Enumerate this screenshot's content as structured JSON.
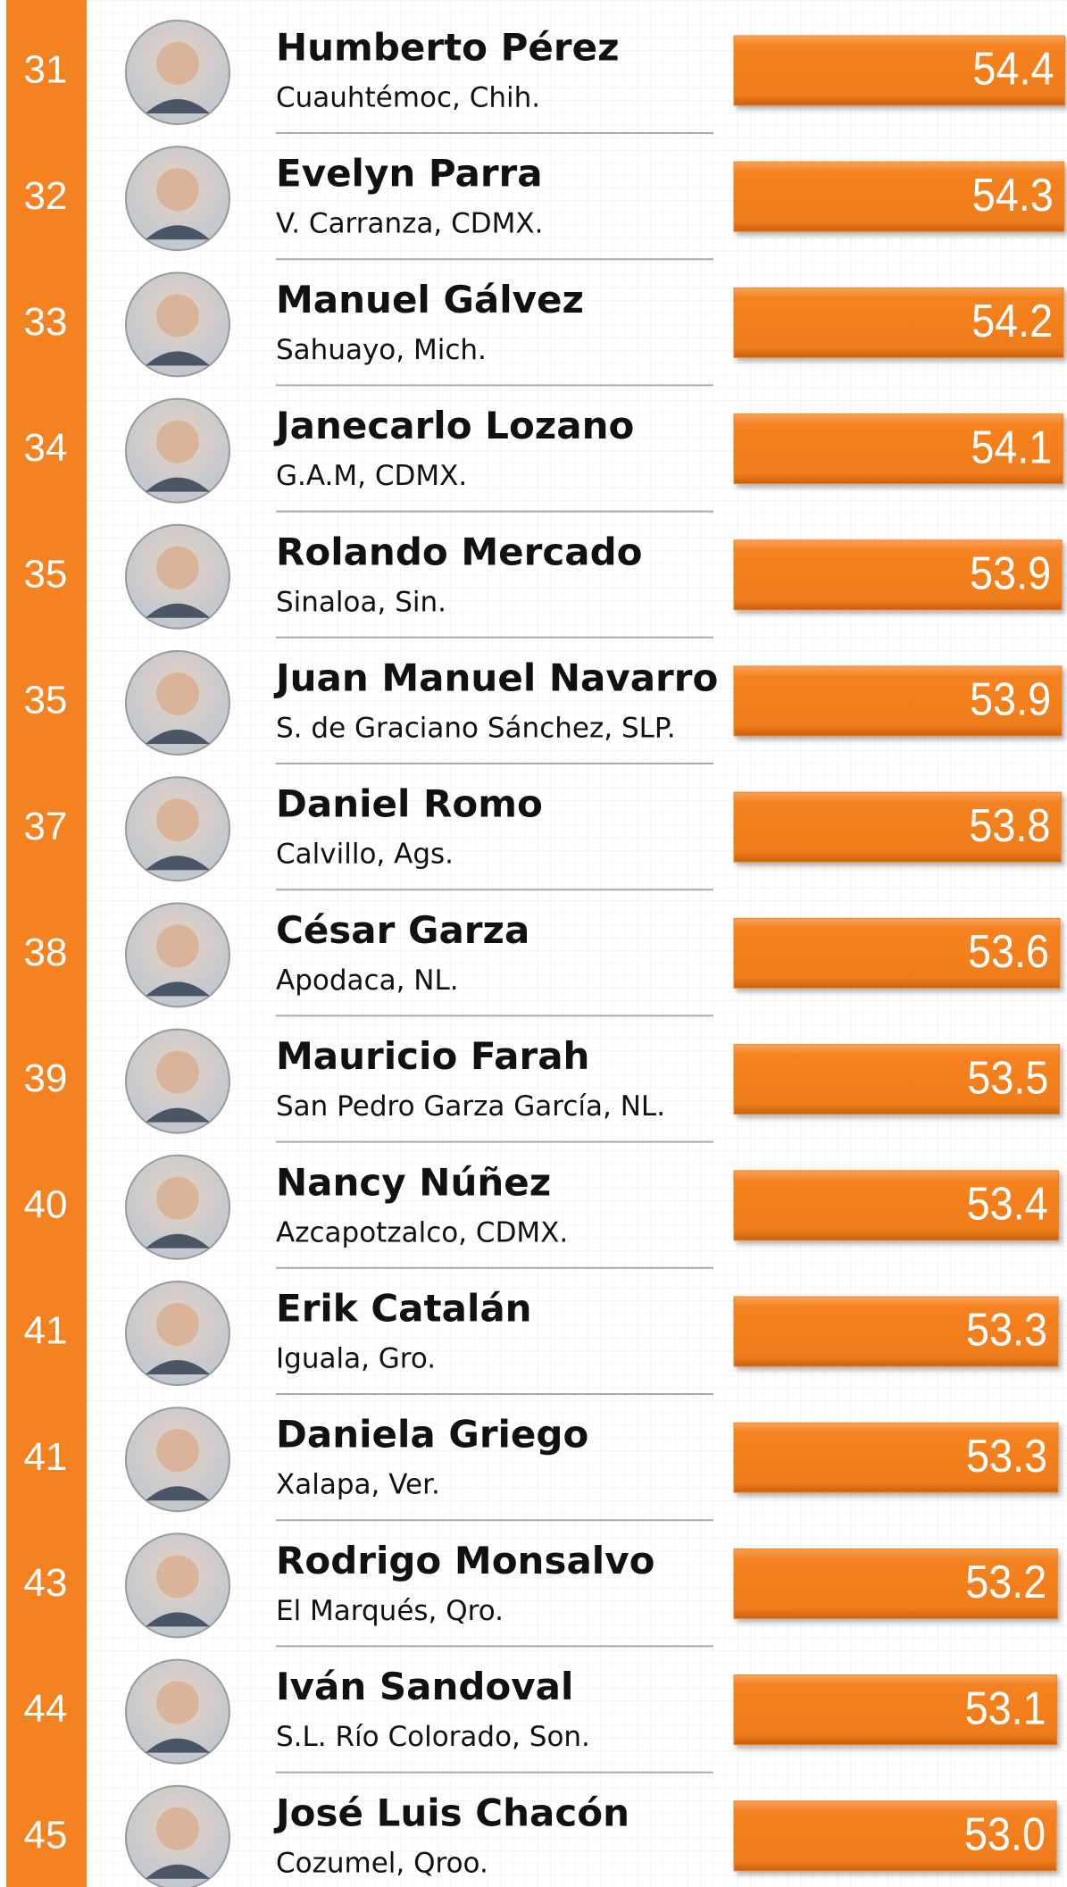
{
  "chart_data": {
    "type": "bar",
    "ranks": [
      "31",
      "32",
      "33",
      "34",
      "35",
      "35",
      "37",
      "38",
      "39",
      "40",
      "41",
      "41",
      "43",
      "44",
      "45"
    ],
    "categories": [
      "Humberto Pérez",
      "Evelyn Parra",
      "Manuel Gálvez",
      "Janecarlo Lozano",
      "Rolando Mercado",
      "Juan Manuel Navarro",
      "Daniel Romo",
      "César Garza",
      "Mauricio Farah",
      "Nancy Núñez",
      "Erik Catalán",
      "Daniela Griego",
      "Rodrigo Monsalvo",
      "Iván Sandoval",
      "José Luis Chacón"
    ],
    "locations": [
      "Cuauhtémoc, Chih.",
      "V. Carranza, CDMX.",
      "Sahuayo, Mich.",
      "G.A.M, CDMX.",
      "Sinaloa, Sin.",
      "S. de Graciano Sánchez, SLP.",
      "Calvillo, Ags.",
      "Apodaca, NL.",
      "San Pedro Garza García, NL.",
      "Azcapotzalco, CDMX.",
      "Iguala, Gro.",
      "Xalapa, Ver.",
      "El Marqués, Qro.",
      "S.L. Río Colorado, Son.",
      "Cozumel, Qroo."
    ],
    "values": [
      54.4,
      54.3,
      54.2,
      54.1,
      53.9,
      53.9,
      53.8,
      53.6,
      53.5,
      53.4,
      53.3,
      53.3,
      53.2,
      53.1,
      53.0
    ],
    "value_labels": [
      "54.4",
      "54.3",
      "54.2",
      "54.1",
      "53.9",
      "53.9",
      "53.8",
      "53.6",
      "53.5",
      "53.4",
      "53.3",
      "53.3",
      "53.2",
      "53.1",
      "53.0"
    ],
    "color": "#f58220",
    "xlim": [
      0,
      55
    ]
  }
}
